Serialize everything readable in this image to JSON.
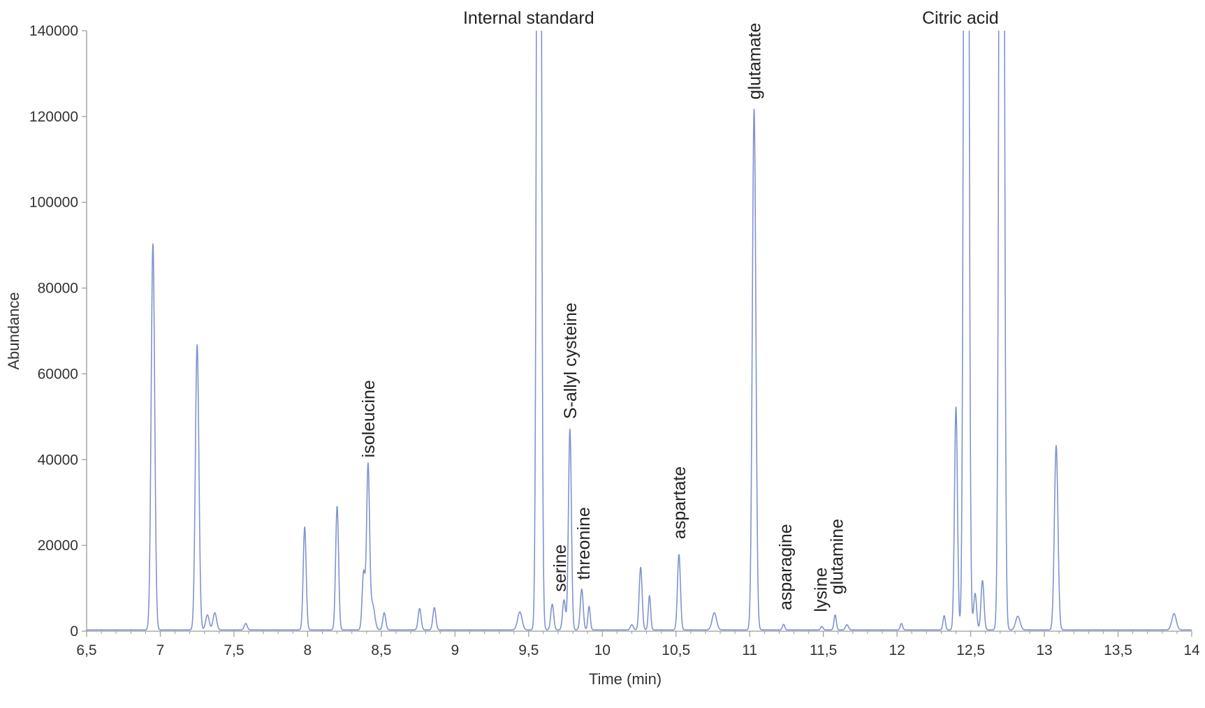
{
  "chart_data": {
    "type": "line",
    "xlabel": "Time (min)",
    "ylabel": "Abundance",
    "xlim": [
      6.5,
      14
    ],
    "ylim": [
      0,
      140000
    ],
    "x_ticks": [
      "6,5",
      "7",
      "7,5",
      "8",
      "8,5",
      "9",
      "9,5",
      "10",
      "10,5",
      "11",
      "11,5",
      "12",
      "12,5",
      "13",
      "13,5",
      "14"
    ],
    "y_ticks": [
      "0",
      "20000",
      "40000",
      "60000",
      "80000",
      "100000",
      "120000",
      "140000"
    ],
    "grid": false,
    "line_color": "#7f94cf",
    "baseline": 300,
    "peaks": [
      {
        "x": 6.95,
        "y": 90000,
        "w": 0.012
      },
      {
        "x": 7.25,
        "y": 66500,
        "w": 0.012
      },
      {
        "x": 7.32,
        "y": 3500,
        "w": 0.012
      },
      {
        "x": 7.37,
        "y": 4000,
        "w": 0.012
      },
      {
        "x": 7.58,
        "y": 1500,
        "w": 0.01
      },
      {
        "x": 7.98,
        "y": 24000,
        "w": 0.01
      },
      {
        "x": 8.2,
        "y": 28800,
        "w": 0.01
      },
      {
        "x": 8.38,
        "y": 13500,
        "w": 0.01
      },
      {
        "x": 8.41,
        "y": 38000,
        "w": 0.01
      },
      {
        "x": 8.44,
        "y": 6000,
        "w": 0.015
      },
      {
        "x": 8.52,
        "y": 4000,
        "w": 0.01
      },
      {
        "x": 8.76,
        "y": 5000,
        "w": 0.01
      },
      {
        "x": 8.86,
        "y": 5200,
        "w": 0.01
      },
      {
        "x": 9.44,
        "y": 4200,
        "w": 0.015
      },
      {
        "x": 9.57,
        "y": 420000,
        "w": 0.012
      },
      {
        "x": 9.66,
        "y": 6000,
        "w": 0.01
      },
      {
        "x": 9.74,
        "y": 7000,
        "w": 0.01
      },
      {
        "x": 9.78,
        "y": 46800,
        "w": 0.01
      },
      {
        "x": 9.86,
        "y": 9500,
        "w": 0.01
      },
      {
        "x": 9.91,
        "y": 5500,
        "w": 0.008
      },
      {
        "x": 10.2,
        "y": 1200,
        "w": 0.01
      },
      {
        "x": 10.26,
        "y": 14600,
        "w": 0.01
      },
      {
        "x": 10.32,
        "y": 8000,
        "w": 0.008
      },
      {
        "x": 10.52,
        "y": 17600,
        "w": 0.01
      },
      {
        "x": 10.76,
        "y": 4000,
        "w": 0.015
      },
      {
        "x": 11.03,
        "y": 121500,
        "w": 0.012
      },
      {
        "x": 11.23,
        "y": 1300,
        "w": 0.008
      },
      {
        "x": 11.49,
        "y": 800,
        "w": 0.008
      },
      {
        "x": 11.58,
        "y": 3500,
        "w": 0.008
      },
      {
        "x": 11.66,
        "y": 1200,
        "w": 0.01
      },
      {
        "x": 12.03,
        "y": 1500,
        "w": 0.008
      },
      {
        "x": 12.32,
        "y": 3300,
        "w": 0.008
      },
      {
        "x": 12.4,
        "y": 52000,
        "w": 0.01
      },
      {
        "x": 12.47,
        "y": 450000,
        "w": 0.013
      },
      {
        "x": 12.53,
        "y": 8500,
        "w": 0.01
      },
      {
        "x": 12.58,
        "y": 11500,
        "w": 0.01
      },
      {
        "x": 12.71,
        "y": 450000,
        "w": 0.013
      },
      {
        "x": 12.82,
        "y": 3200,
        "w": 0.015
      },
      {
        "x": 13.08,
        "y": 43000,
        "w": 0.012
      },
      {
        "x": 13.88,
        "y": 3800,
        "w": 0.015
      }
    ],
    "annotations": [
      {
        "text": "Internal standard",
        "x": 9.5,
        "y": 140000,
        "rotate": false
      },
      {
        "text": "Citric acid",
        "x": 12.43,
        "y": 140000,
        "rotate": false
      },
      {
        "text": "glutamate",
        "x": 11.03,
        "y": 123000,
        "rotate": true
      },
      {
        "text": "isoleucine",
        "x": 8.41,
        "y": 39500,
        "rotate": true
      },
      {
        "text": "S-allyl cysteine",
        "x": 9.78,
        "y": 48500,
        "rotate": true
      },
      {
        "text": "serine",
        "x": 9.71,
        "y": 8200,
        "rotate": true
      },
      {
        "text": "threonine",
        "x": 9.87,
        "y": 11000,
        "rotate": true
      },
      {
        "text": "aspartate",
        "x": 10.52,
        "y": 20500,
        "rotate": true
      },
      {
        "text": "asparagine",
        "x": 11.24,
        "y": 3900,
        "rotate": true
      },
      {
        "text": "lysine",
        "x": 11.48,
        "y": 3500,
        "rotate": true
      },
      {
        "text": "glutamine",
        "x": 11.59,
        "y": 7600,
        "rotate": true
      }
    ]
  }
}
